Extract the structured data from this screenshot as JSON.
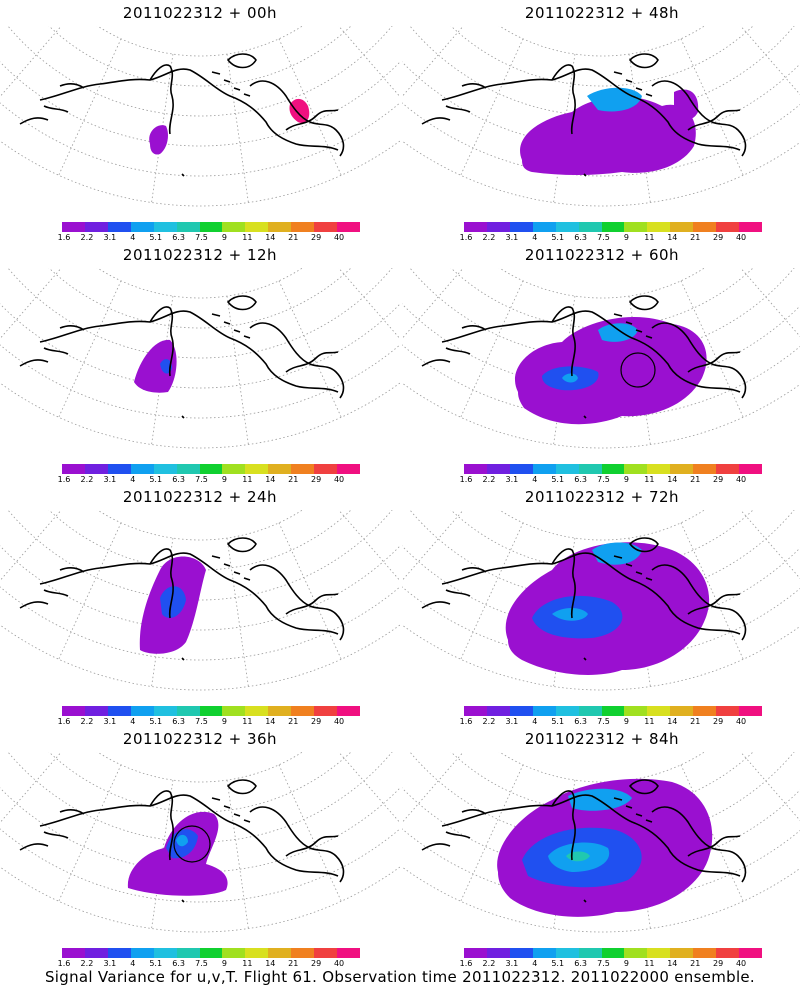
{
  "panels": [
    {
      "title": "2011022312 + 00h",
      "col": 0,
      "row": 0
    },
    {
      "title": "2011022312 + 48h",
      "col": 1,
      "row": 0
    },
    {
      "title": "2011022312 + 12h",
      "col": 0,
      "row": 1
    },
    {
      "title": "2011022312 + 60h",
      "col": 1,
      "row": 1
    },
    {
      "title": "2011022312 + 24h",
      "col": 0,
      "row": 2
    },
    {
      "title": "2011022312 + 72h",
      "col": 1,
      "row": 2
    },
    {
      "title": "2011022312 + 36h",
      "col": 0,
      "row": 3
    },
    {
      "title": "2011022312 + 84h",
      "col": 1,
      "row": 3
    }
  ],
  "colorbar": {
    "colors": [
      "#9a10d0",
      "#7020e0",
      "#2050f0",
      "#10a0f0",
      "#20c0e0",
      "#20c8b0",
      "#10d030",
      "#a0e020",
      "#d8e020",
      "#e0b020",
      "#f08020",
      "#f04040",
      "#f01080"
    ],
    "labels": [
      "1.6",
      "2.2",
      "3.1",
      "4",
      "5.1",
      "6.3",
      "7.5",
      "9",
      "11",
      "14",
      "21",
      "29",
      "40"
    ]
  },
  "caption": "Signal Variance for u,v,T. Flight 61. Observation time 2011022312. 2011022000 ensemble."
}
